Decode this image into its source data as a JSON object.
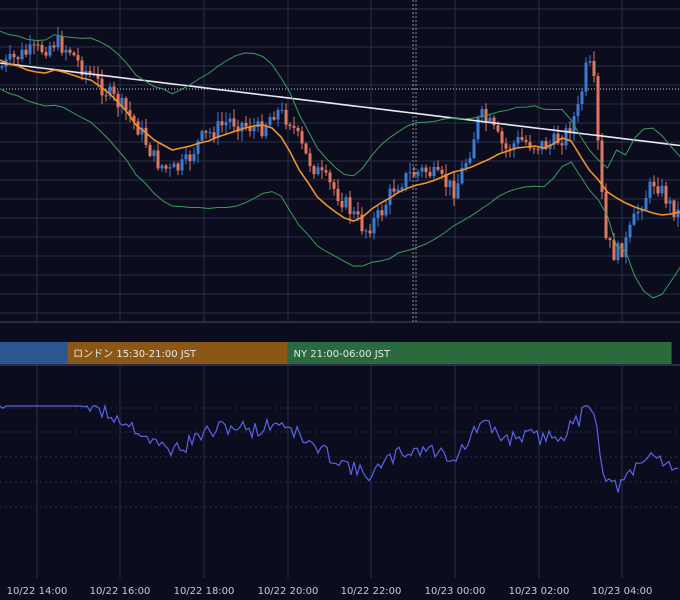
{
  "colors": {
    "background": "#0b0d1f",
    "grid": "#2a2e45",
    "candle_up": "#3b7bd1",
    "candle_down": "#e0785f",
    "ma_fast": "#f0922e",
    "ma_slow": "#e8e8f0",
    "bollinger": "#3f9a5a",
    "oscillator": "#5a63e6",
    "session_tokyo": "#2b5890",
    "session_london": "#8a5716",
    "session_ny": "#2b6a3f"
  },
  "sessions": [
    {
      "label": "",
      "start": 0,
      "end": 1.6
    },
    {
      "label": "ロンドン 15:30-21:00 JST",
      "start": 1.6,
      "end": 6.85
    },
    {
      "label": "NY 21:00-06:00 JST",
      "start": 6.85,
      "end": 16
    }
  ],
  "chart_data": [
    {
      "type": "line",
      "title": "",
      "x_tick_labels": [
        "14",
        "16",
        "18",
        "20",
        "22",
        "0",
        "2",
        "4"
      ],
      "grid": true,
      "series": [
        {
          "values": [
            73,
            71,
            70,
            68,
            63,
            58,
            61,
            52,
            49,
            44,
            40,
            38,
            41,
            48,
            64,
            85,
            92,
            105,
            111,
            118,
            125,
            131,
            136,
            141,
            143,
            146,
            151,
            158,
            164,
            170,
            173,
            176,
            179,
            180,
            184,
            187,
            190,
            189,
            188,
            186,
            183,
            179,
            172,
            167,
            161,
            155,
            152,
            148,
            143,
            140,
            138,
            139,
            142,
            143,
            141,
            136,
            131,
            128,
            126,
            124,
            133,
            155,
            188,
            208,
            222,
            230,
            233,
            232,
            228,
            221,
            214,
            206,
            198,
            192,
            190,
            188
          ]
        },
        {
          "values": [
            60,
            64,
            66,
            70,
            72,
            73,
            70,
            72,
            75,
            78,
            80,
            86,
            93,
            102,
            112,
            125,
            132,
            140,
            145,
            150,
            148,
            146,
            143,
            141,
            137,
            134,
            131,
            128,
            126,
            125,
            128,
            137,
            152,
            170,
            183,
            197,
            205,
            212,
            218,
            221,
            217,
            209,
            203,
            198,
            192,
            188,
            185,
            183,
            180,
            176,
            172,
            170,
            167,
            163,
            159,
            154,
            151,
            148,
            147,
            146,
            148,
            144,
            138,
            141,
            156,
            170,
            180,
            192,
            198,
            203,
            207,
            210,
            213,
            215,
            214,
            212
          ]
        },
        {
          "values": [
            96,
            98,
            100,
            102,
            105,
            110,
            118,
            125,
            132,
            140,
            148,
            155,
            160,
            162,
            166,
            170,
            178,
            187,
            195,
            205,
            215,
            225,
            235,
            245,
            251,
            250,
            242,
            228,
            212,
            197,
            185,
            173,
            163,
            155,
            148,
            145,
            151,
            163,
            178,
            193,
            202,
            208,
            208,
            203,
            196,
            190,
            180,
            170,
            162,
            155,
            148,
            141,
            136,
            133,
            134,
            129,
            115,
            95,
            70,
            45,
            30,
            40,
            80,
            160,
            230,
            270,
            283,
            265,
            225,
            185
          ]
        }
      ]
    }
  ]
}
